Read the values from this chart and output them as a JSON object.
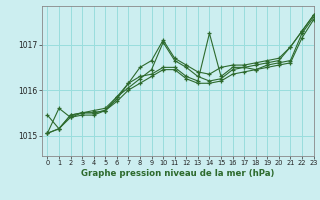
{
  "title": "Graphe pression niveau de la mer (hPa)",
  "background_color": "#cceef0",
  "grid_color": "#99dddd",
  "line_color": "#2d6a2d",
  "xlim": [
    -0.5,
    23
  ],
  "ylim": [
    1014.55,
    1017.85
  ],
  "yticks": [
    1015,
    1016,
    1017
  ],
  "xticks": [
    0,
    1,
    2,
    3,
    4,
    5,
    6,
    7,
    8,
    9,
    10,
    11,
    12,
    13,
    14,
    15,
    16,
    17,
    18,
    19,
    20,
    21,
    22,
    23
  ],
  "series": [
    [
      1015.05,
      1015.6,
      1015.4,
      1015.5,
      1015.55,
      1015.6,
      1015.85,
      1016.05,
      1016.25,
      1016.45,
      1017.05,
      1016.65,
      1016.5,
      1016.3,
      1016.2,
      1016.25,
      1016.45,
      1016.5,
      1016.55,
      1016.6,
      1016.65,
      1016.95,
      1017.3,
      1017.65
    ],
    [
      1015.05,
      1015.15,
      1015.45,
      1015.5,
      1015.5,
      1015.55,
      1015.8,
      1016.15,
      1016.3,
      1016.35,
      1016.5,
      1016.5,
      1016.3,
      1016.2,
      1017.25,
      1016.3,
      1016.5,
      1016.5,
      1016.45,
      1016.55,
      1016.6,
      1016.65,
      1017.25,
      1017.6
    ],
    [
      1015.45,
      1015.15,
      1015.45,
      1015.5,
      1015.5,
      1015.55,
      1015.85,
      1016.15,
      1016.5,
      1016.65,
      1017.1,
      1016.7,
      1016.55,
      1016.4,
      1016.35,
      1016.5,
      1016.55,
      1016.55,
      1016.6,
      1016.65,
      1016.7,
      1016.95,
      1017.3,
      1017.65
    ],
    [
      1015.05,
      1015.15,
      1015.4,
      1015.45,
      1015.45,
      1015.55,
      1015.75,
      1016.0,
      1016.15,
      1016.3,
      1016.45,
      1016.45,
      1016.25,
      1016.15,
      1016.15,
      1016.2,
      1016.35,
      1016.4,
      1016.45,
      1016.5,
      1016.55,
      1016.6,
      1017.15,
      1017.55
    ]
  ]
}
